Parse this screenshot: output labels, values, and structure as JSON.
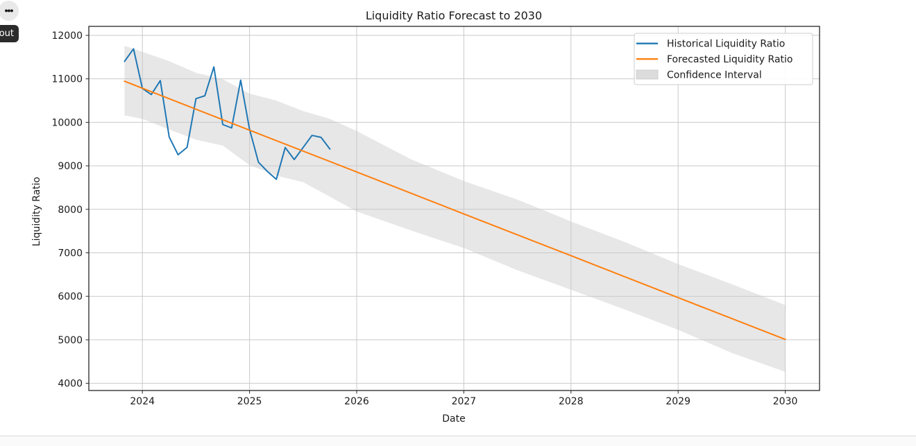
{
  "ui": {
    "more_button": {
      "icon": "ellipsis-icon",
      "glyph": "•••"
    },
    "tooltip_badge": {
      "label": "out"
    }
  },
  "chart_data": {
    "type": "line",
    "title": "Liquidity Ratio Forecast to 2030",
    "xlabel": "Date",
    "ylabel": "Liquidity Ratio",
    "xlim": [
      2023.5,
      2030.32
    ],
    "ylim": [
      3834,
      12207
    ],
    "x_ticks": [
      2024,
      2025,
      2026,
      2027,
      2028,
      2029,
      2030
    ],
    "y_ticks": [
      4000,
      5000,
      6000,
      7000,
      8000,
      9000,
      10000,
      11000,
      12000
    ],
    "grid": true,
    "colors": {
      "historical": "#1f77b4",
      "forecast": "#ff7f0e",
      "confidence_band": "#d3d3d3",
      "gridline": "#c9c9c9",
      "spine": "#262626",
      "text": "#1a1a1a"
    },
    "series": [
      {
        "name": "Historical Liquidity Ratio",
        "color": "#1f77b4",
        "dates": [
          "2023-11",
          "2023-12",
          "2024-01",
          "2024-02",
          "2024-03",
          "2024-04",
          "2024-05",
          "2024-06",
          "2024-07",
          "2024-08",
          "2024-09",
          "2024-10",
          "2024-11",
          "2024-12",
          "2025-01",
          "2025-02",
          "2025-03",
          "2025-04",
          "2025-05",
          "2025-06",
          "2025-07",
          "2025-08",
          "2025-09",
          "2025-10"
        ],
        "x": [
          2023.833,
          2023.917,
          2024.0,
          2024.083,
          2024.167,
          2024.25,
          2024.333,
          2024.417,
          2024.5,
          2024.583,
          2024.667,
          2024.75,
          2024.833,
          2024.917,
          2025.0,
          2025.083,
          2025.167,
          2025.25,
          2025.333,
          2025.417,
          2025.5,
          2025.583,
          2025.667,
          2025.75
        ],
        "values": [
          11400,
          11690,
          10780,
          10640,
          10960,
          9665,
          9255,
          9425,
          10545,
          10610,
          11275,
          9950,
          9870,
          10970,
          9840,
          9085,
          8870,
          8690,
          9420,
          9145,
          9420,
          9700,
          9655,
          9385
        ]
      },
      {
        "name": "Forecasted Liquidity Ratio",
        "color": "#ff7f0e",
        "x": [
          2023.833,
          2024.0,
          2025.0,
          2026.0,
          2027.0,
          2028.0,
          2029.0,
          2030.0
        ],
        "values": [
          10945,
          10785,
          9820,
          8860,
          7895,
          6935,
          5970,
          5010
        ]
      }
    ],
    "confidence_interval": {
      "name": "Confidence Interval",
      "color": "#d3d3d3",
      "opacity": 0.55,
      "x": [
        2023.833,
        2024.0,
        2024.25,
        2024.5,
        2024.75,
        2025.0,
        2025.25,
        2025.5,
        2025.75,
        2026.0,
        2026.5,
        2027.0,
        2027.5,
        2028.0,
        2028.5,
        2029.0,
        2029.5,
        2030.0
      ],
      "upper": [
        11760,
        11620,
        11405,
        11140,
        10990,
        10660,
        10500,
        10260,
        10080,
        9800,
        9160,
        8650,
        8225,
        7720,
        7250,
        6740,
        6280,
        5800
      ],
      "lower": [
        10160,
        10080,
        9835,
        9600,
        9465,
        9015,
        8775,
        8625,
        8290,
        7950,
        7520,
        7110,
        6600,
        6150,
        5700,
        5230,
        4700,
        4265
      ]
    },
    "legend": {
      "position": "upper right",
      "entries": [
        {
          "label": "Historical Liquidity Ratio",
          "swatch": "line",
          "color": "#1f77b4"
        },
        {
          "label": "Forecasted Liquidity Ratio",
          "swatch": "line",
          "color": "#ff7f0e"
        },
        {
          "label": "Confidence Interval",
          "swatch": "patch",
          "color": "#dcdcdc"
        }
      ]
    }
  }
}
